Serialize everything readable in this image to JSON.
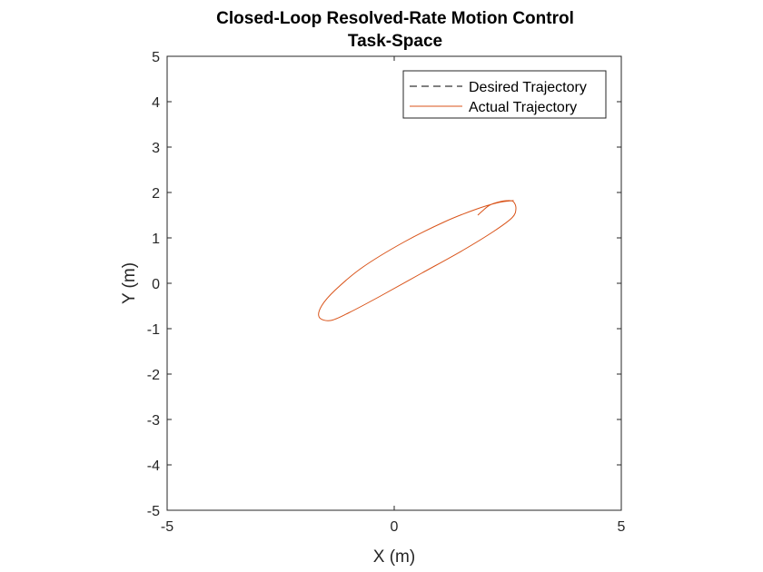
{
  "chart_data": {
    "type": "line",
    "title": [
      "Closed-Loop Resolved-Rate Motion Control",
      "Task-Space"
    ],
    "xlabel": "X (m)",
    "ylabel": "Y (m)",
    "xlim": [
      -5,
      5
    ],
    "ylim": [
      -5,
      5
    ],
    "xticks": [
      -5,
      0,
      5
    ],
    "yticks": [
      -5,
      -4,
      -3,
      -2,
      -1,
      0,
      1,
      2,
      3,
      4,
      5
    ],
    "xtick_labels": [
      "-5",
      "0",
      "5"
    ],
    "ytick_labels": [
      "-5",
      "-4",
      "-3",
      "-2",
      "-1",
      "0",
      "1",
      "2",
      "3",
      "4",
      "5"
    ],
    "grid": false,
    "legend_position": "top-right",
    "series": [
      {
        "name": "Desired Trajectory",
        "color": "#000000",
        "style": "dashed",
        "x": [],
        "y": []
      },
      {
        "name": "Actual Trajectory",
        "color": "#D95319",
        "style": "solid",
        "x": [
          1.84,
          1.95,
          2.1,
          2.3,
          2.48,
          2.62,
          2.68,
          2.6,
          2.2,
          1.5,
          0.6,
          -0.3,
          -1.0,
          -1.4,
          -1.65,
          -1.6,
          -1.3,
          -0.7,
          0.2,
          1.1,
          1.8,
          2.3,
          2.6,
          2.62
        ],
        "y": [
          1.5,
          1.6,
          1.72,
          1.79,
          1.82,
          1.8,
          1.65,
          1.45,
          1.15,
          0.72,
          0.22,
          -0.28,
          -0.65,
          -0.82,
          -0.75,
          -0.5,
          -0.15,
          0.35,
          0.9,
          1.35,
          1.63,
          1.78,
          1.82,
          1.82
        ]
      }
    ]
  }
}
